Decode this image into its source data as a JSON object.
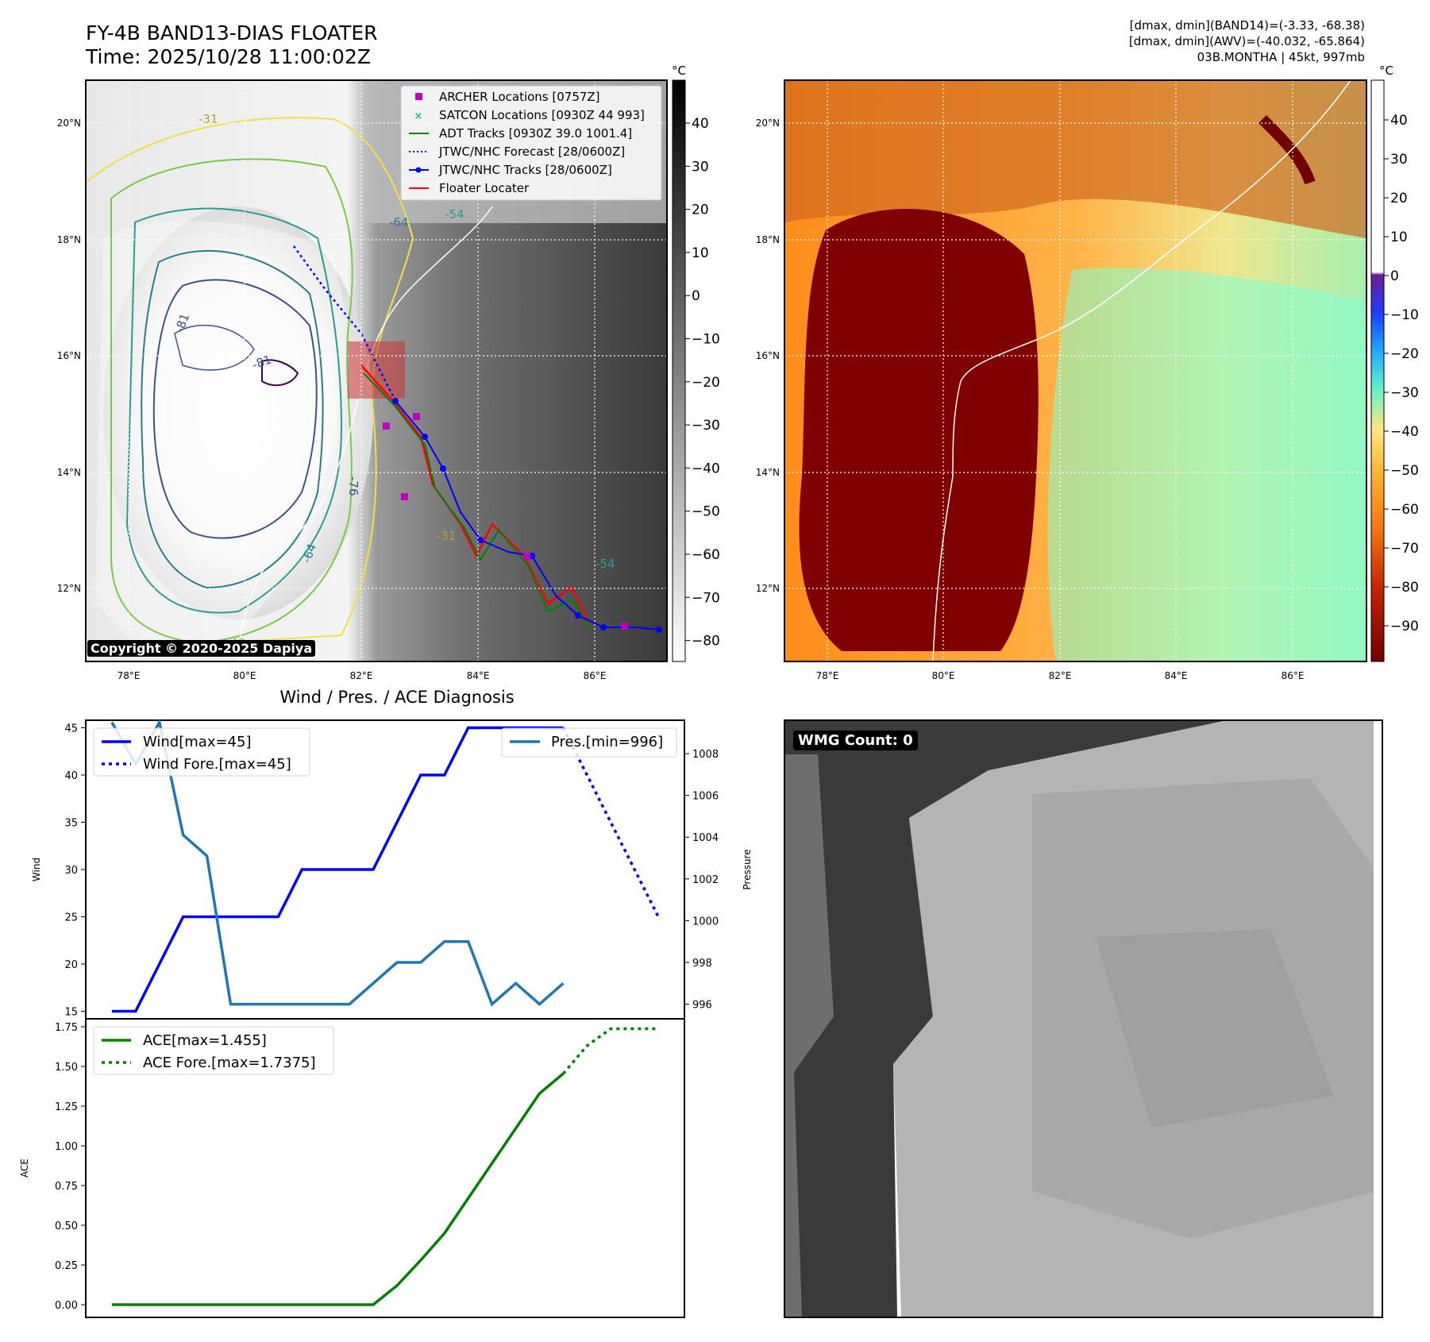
{
  "header": {
    "title_line1": "FY-4B BAND13-DIAS FLOATER",
    "title_line2": "Time: 2025/10/28 11:00:02Z",
    "info_line1": "[dmax, dmin](BAND14)=(-3.33, -68.38)",
    "info_line2": "[dmax, dmin](AWV)=(-40.032, -65.864)",
    "info_line3": "03B.MONTHA | 45kt, 997mb"
  },
  "map_left": {
    "lat_labels": [
      "20°N",
      "18°N",
      "16°N",
      "14°N",
      "12°N"
    ],
    "lon_labels": [
      "78°E",
      "80°E",
      "82°E",
      "84°E",
      "86°E"
    ],
    "copyright": "Copyright © 2020-2025 Dapiya",
    "contour_labels": [
      "-31",
      "-31",
      "-42",
      "-54",
      "-64",
      "-64",
      "-76",
      "-81",
      "-81",
      "-54"
    ],
    "legend": [
      {
        "label": "ARCHER Locations [0757Z]",
        "color": "#c000c0",
        "marker": "square"
      },
      {
        "label": "SATCON Locations [0930Z 44 993]",
        "color": "#1abc9c",
        "marker": "x"
      },
      {
        "label": "ADT Tracks [0930Z 39.0 1001.4]",
        "color": "#008000",
        "marker": "line"
      },
      {
        "label": "JTWC/NHC Forecast [28/0600Z]",
        "color": "#0000ff",
        "marker": "dotted"
      },
      {
        "label": "JTWC/NHC Tracks [28/0600Z]",
        "color": "#0000ff",
        "marker": "line-dot"
      },
      {
        "label": "Floater Locater",
        "color": "#ff0000",
        "marker": "line"
      }
    ],
    "colorbar_unit": "°C",
    "colorbar_ticks": [
      "40",
      "30",
      "20",
      "10",
      "0",
      "−10",
      "−20",
      "−30",
      "−40",
      "−50",
      "−60",
      "−70",
      "−80"
    ]
  },
  "map_right": {
    "lat_labels": [
      "20°N",
      "18°N",
      "16°N",
      "14°N",
      "12°N"
    ],
    "lon_labels": [
      "78°E",
      "80°E",
      "82°E",
      "84°E",
      "86°E"
    ],
    "colorbar_unit": "°C",
    "colorbar_ticks": [
      "40",
      "30",
      "20",
      "10",
      "0",
      "−10",
      "−20",
      "−30",
      "−40",
      "−50",
      "−60",
      "−70",
      "−80",
      "−90"
    ]
  },
  "wmg_panel": {
    "badge": "WMG Count: 0"
  },
  "colors": {
    "wind": "#0000ff",
    "pressure": "#1f77b4",
    "ace": "#008000",
    "floater": "#ff0000",
    "track": "#0000ff"
  },
  "chart_data": [
    {
      "type": "line",
      "title": "Wind / Pres. / ACE Diagnosis",
      "ylabel": "Wind",
      "ylabel_right": "Pressure",
      "ylim": [
        14.2,
        45.8
      ],
      "ylim_right": [
        995.3,
        1009.6
      ],
      "xlim": [
        -1.1,
        24.1
      ],
      "yticks": [
        15,
        20,
        25,
        30,
        35,
        40,
        45
      ],
      "yticks_right": [
        996,
        998,
        1000,
        1002,
        1004,
        1006,
        1008
      ],
      "series": [
        {
          "name": "Wind[max=45]",
          "style": "solid",
          "x": [
            0,
            1,
            3,
            4,
            5,
            6,
            7,
            8,
            9,
            10,
            11,
            12,
            13,
            14,
            15,
            16,
            17,
            18,
            19
          ],
          "values": [
            15,
            15,
            25,
            25,
            25,
            25,
            25,
            30,
            30,
            30,
            30,
            35,
            40,
            40,
            45,
            45,
            45,
            45,
            45
          ]
        },
        {
          "name": "Wind Fore.[max=45]",
          "style": "dotted",
          "x": [
            19,
            20,
            21,
            22,
            23
          ],
          "values": [
            45,
            40,
            35,
            30,
            25
          ]
        },
        {
          "name": "Pres.[min=996]",
          "style": "solid",
          "axis": "right",
          "x": [
            0,
            1,
            2,
            3,
            4,
            5,
            6,
            7,
            8,
            9,
            10,
            11,
            12,
            13,
            14,
            15,
            16,
            17,
            18,
            19
          ],
          "values": [
            1009.5,
            1007.5,
            1009.5,
            1004.1,
            1003.1,
            996,
            996,
            996,
            996,
            996,
            996,
            997,
            998,
            998,
            999,
            999,
            996,
            997,
            996,
            997
          ]
        }
      ],
      "legend": [
        "Wind[max=45]",
        "Wind Fore.[max=45]",
        "Pres.[min=996]"
      ]
    },
    {
      "type": "line",
      "ylabel": "ACE",
      "ylim": [
        -0.08,
        1.8
      ],
      "xlim": [
        -1.1,
        24.1
      ],
      "yticks": [
        "0.00",
        "0.25",
        "0.50",
        "0.75",
        "1.00",
        "1.25",
        "1.50",
        "1.75"
      ],
      "series": [
        {
          "name": "ACE[max=1.455]",
          "style": "solid",
          "x": [
            0,
            11,
            12,
            13,
            14,
            15,
            16,
            17,
            18,
            19
          ],
          "values": [
            0,
            0,
            0.12,
            0.28,
            0.45,
            0.67,
            0.89,
            1.11,
            1.33,
            1.455
          ]
        },
        {
          "name": "ACE Fore.[max=1.7375]",
          "style": "dotted",
          "x": [
            19,
            20,
            21,
            22,
            23
          ],
          "values": [
            1.455,
            1.63,
            1.7375,
            1.7375,
            1.7375
          ]
        }
      ],
      "legend": [
        "ACE[max=1.455]",
        "ACE Fore.[max=1.7375]"
      ]
    }
  ]
}
